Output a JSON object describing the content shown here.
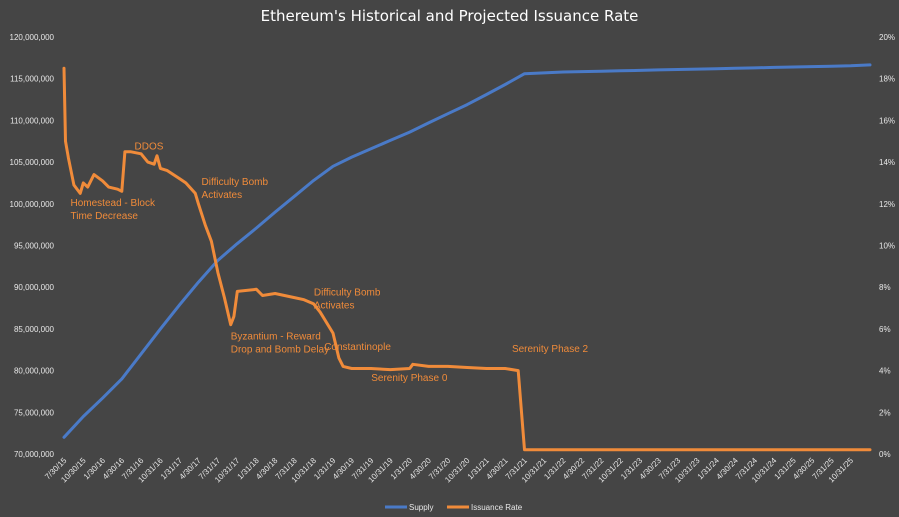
{
  "chart_data": {
    "type": "line",
    "title": "Ethereum's Historical and Projected Issuance Rate",
    "xlabel": "",
    "ylabel": "",
    "y_left_range": [
      70000000,
      120000000
    ],
    "y_right_range": [
      0,
      20
    ],
    "y_left_ticks": [
      "70,000,000",
      "75,000,000",
      "80,000,000",
      "85,000,000",
      "90,000,000",
      "95,000,000",
      "100,000,000",
      "105,000,000",
      "110,000,000",
      "115,000,000",
      "120,000,000"
    ],
    "y_right_ticks": [
      "0%",
      "2%",
      "4%",
      "6%",
      "8%",
      "10%",
      "12%",
      "14%",
      "16%",
      "18%",
      "20%"
    ],
    "x_ticks": [
      "7/30/15",
      "10/30/15",
      "1/30/16",
      "4/30/16",
      "7/31/16",
      "10/31/16",
      "1/31/17",
      "4/30/17",
      "7/31/17",
      "10/31/17",
      "1/31/18",
      "4/30/18",
      "7/31/18",
      "10/31/18",
      "1/31/19",
      "4/30/19",
      "7/31/19",
      "10/31/19",
      "1/31/20",
      "4/30/20",
      "7/31/20",
      "10/31/20",
      "1/31/21",
      "4/30/21",
      "7/31/21",
      "10/31/21",
      "1/31/22",
      "4/30/22",
      "7/31/22",
      "10/31/22",
      "1/31/23",
      "4/30/23",
      "7/31/23",
      "10/31/23",
      "1/31/24",
      "4/30/24",
      "7/31/24",
      "10/31/24",
      "1/31/25",
      "4/30/25",
      "7/31/25",
      "10/31/25"
    ],
    "grid": false,
    "legend_position": "bottom",
    "series": [
      {
        "name": "Supply",
        "axis": "left",
        "color": "#4a7ac7",
        "points": [
          [
            "7/30/15",
            72000000
          ],
          [
            "10/30/15",
            74500000
          ],
          [
            "1/30/16",
            76700000
          ],
          [
            "4/30/16",
            79000000
          ],
          [
            "7/31/16",
            82000000
          ],
          [
            "10/31/16",
            85000000
          ],
          [
            "1/31/17",
            87900000
          ],
          [
            "4/30/17",
            90600000
          ],
          [
            "7/31/17",
            93200000
          ],
          [
            "10/31/17",
            95200000
          ],
          [
            "1/31/18",
            97100000
          ],
          [
            "4/30/18",
            99000000
          ],
          [
            "7/31/18",
            100900000
          ],
          [
            "10/31/18",
            102800000
          ],
          [
            "1/31/19",
            104500000
          ],
          [
            "4/30/19",
            105600000
          ],
          [
            "7/31/19",
            106600000
          ],
          [
            "10/31/19",
            107600000
          ],
          [
            "1/31/20",
            108600000
          ],
          [
            "4/30/20",
            109700000
          ],
          [
            "7/31/20",
            110800000
          ],
          [
            "10/31/20",
            111900000
          ],
          [
            "1/31/21",
            113100000
          ],
          [
            "4/30/21",
            114300000
          ],
          [
            "7/31/21",
            115600000
          ],
          [
            "10/31/21",
            115700000
          ],
          [
            "1/31/22",
            115800000
          ],
          [
            "4/30/22",
            115850000
          ],
          [
            "7/31/22",
            115900000
          ],
          [
            "10/31/22",
            115950000
          ],
          [
            "1/31/23",
            116000000
          ],
          [
            "4/30/23",
            116050000
          ],
          [
            "7/31/23",
            116100000
          ],
          [
            "10/31/23",
            116150000
          ],
          [
            "1/31/24",
            116200000
          ],
          [
            "4/30/24",
            116250000
          ],
          [
            "7/31/24",
            116300000
          ],
          [
            "10/31/24",
            116350000
          ],
          [
            "1/31/25",
            116400000
          ],
          [
            "4/30/25",
            116450000
          ],
          [
            "7/31/25",
            116500000
          ],
          [
            "10/31/25",
            116550000
          ],
          [
            "1/31/26",
            116650000
          ]
        ]
      },
      {
        "name": "Issuance Rate",
        "axis": "right",
        "color": "#f08b3a",
        "points": [
          [
            "7/30/15",
            18.5
          ],
          [
            "8/6/15",
            15.0
          ],
          [
            "8/20/15",
            14.2
          ],
          [
            "9/15/15",
            12.9
          ],
          [
            "10/15/15",
            12.5
          ],
          [
            "10/30/15",
            13.0
          ],
          [
            "11/20/15",
            12.8
          ],
          [
            "12/20/15",
            13.4
          ],
          [
            "1/30/16",
            13.1
          ],
          [
            "2/28/16",
            12.8
          ],
          [
            "4/10/16",
            12.7
          ],
          [
            "4/30/16",
            12.6
          ],
          [
            "5/15/16",
            14.5
          ],
          [
            "6/10/16",
            14.5
          ],
          [
            "7/31/16",
            14.4
          ],
          [
            "9/1/16",
            14.0
          ],
          [
            "10/1/16",
            13.9
          ],
          [
            "10/15/16",
            14.3
          ],
          [
            "10/31/16",
            13.7
          ],
          [
            "12/1/16",
            13.6
          ],
          [
            "1/31/17",
            13.2
          ],
          [
            "3/1/17",
            13.0
          ],
          [
            "4/15/17",
            12.5
          ],
          [
            "4/30/17",
            12.0
          ],
          [
            "6/1/17",
            11.0
          ],
          [
            "7/1/17",
            10.2
          ],
          [
            "8/1/17",
            8.7
          ],
          [
            "9/1/17",
            7.5
          ],
          [
            "10/1/17",
            6.2
          ],
          [
            "10/16/17",
            6.6
          ],
          [
            "11/1/17",
            7.8
          ],
          [
            "1/31/18",
            7.9
          ],
          [
            "3/1/18",
            7.6
          ],
          [
            "4/30/18",
            7.7
          ],
          [
            "7/31/18",
            7.5
          ],
          [
            "9/15/18",
            7.4
          ],
          [
            "10/31/18",
            7.2
          ],
          [
            "12/1/18",
            6.8
          ],
          [
            "1/31/19",
            5.8
          ],
          [
            "2/28/19",
            4.6
          ],
          [
            "3/20/19",
            4.2
          ],
          [
            "4/30/19",
            4.1
          ],
          [
            "7/31/19",
            4.1
          ],
          [
            "10/31/19",
            4.05
          ],
          [
            "1/31/20",
            4.1
          ],
          [
            "2/15/20",
            4.3
          ],
          [
            "4/30/20",
            4.2
          ],
          [
            "7/31/20",
            4.2
          ],
          [
            "10/31/20",
            4.15
          ],
          [
            "1/31/21",
            4.1
          ],
          [
            "4/30/21",
            4.1
          ],
          [
            "7/1/21",
            4.0
          ],
          [
            "7/31/21",
            0.2
          ],
          [
            "1/31/26",
            0.2
          ]
        ]
      }
    ],
    "annotations": [
      {
        "lines": [
          "DDOS"
        ],
        "at": [
          "6/30/16",
          14.6
        ]
      },
      {
        "lines": [
          "Homestead - Block",
          "Time Decrease"
        ],
        "at": [
          "8/30/15",
          11.9
        ]
      },
      {
        "lines": [
          "Difficulty Bomb",
          "Activates"
        ],
        "at": [
          "5/15/17",
          12.9
        ]
      },
      {
        "lines": [
          "Byzantium - Reward",
          "Drop and Bomb Delay"
        ],
        "at": [
          "10/1/17",
          5.5
        ]
      },
      {
        "lines": [
          "Difficulty Bomb",
          "Activates"
        ],
        "at": [
          "11/1/18",
          7.6
        ]
      },
      {
        "lines": [
          "Constantinople"
        ],
        "at": [
          "12/20/18",
          5.0
        ]
      },
      {
        "lines": [
          "Serenity Phase 0"
        ],
        "at": [
          "8/1/19",
          3.5
        ]
      },
      {
        "lines": [
          "Serenity Phase 2"
        ],
        "at": [
          "6/1/21",
          4.9
        ]
      }
    ]
  }
}
